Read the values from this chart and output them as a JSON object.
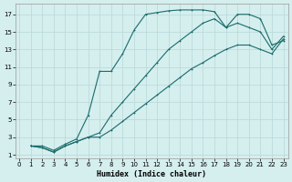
{
  "xlabel": "Humidex (Indice chaleur)",
  "background_color": "#d5eeee",
  "line_color": "#1a6b6b",
  "grid_color": "#b8d8d8",
  "xlim_min": -0.3,
  "xlim_max": 23.4,
  "ylim_min": 0.6,
  "ylim_max": 18.2,
  "xticks": [
    0,
    1,
    2,
    3,
    4,
    5,
    6,
    7,
    8,
    9,
    10,
    11,
    12,
    13,
    14,
    15,
    16,
    17,
    18,
    19,
    20,
    21,
    22,
    23
  ],
  "yticks": [
    1,
    3,
    5,
    7,
    9,
    11,
    13,
    15,
    17
  ],
  "line1_x": [
    1,
    2,
    3,
    4,
    5,
    6,
    7,
    8,
    9,
    10,
    11,
    12,
    13,
    14,
    15,
    16,
    17,
    18,
    19,
    20,
    21,
    22,
    23
  ],
  "line1_y": [
    2.0,
    2.0,
    1.5,
    2.2,
    2.8,
    5.5,
    10.5,
    10.5,
    12.5,
    15.2,
    17.0,
    17.2,
    17.4,
    17.5,
    17.5,
    17.5,
    17.3,
    15.5,
    17.0,
    17.0,
    16.5,
    13.5,
    14.0
  ],
  "line1_markers": [
    1,
    2,
    3,
    4,
    5,
    6,
    7,
    8,
    9,
    10,
    11,
    12,
    13,
    14,
    15,
    16,
    17,
    18,
    19,
    20,
    21,
    22,
    23
  ],
  "line2_x": [
    1,
    2,
    3,
    4,
    5,
    6,
    7,
    8,
    9,
    10,
    11,
    12,
    13,
    14,
    15,
    16,
    17,
    18,
    19,
    20,
    21,
    22,
    23
  ],
  "line2_y": [
    2.0,
    1.8,
    1.3,
    2.0,
    2.5,
    3.0,
    3.5,
    5.5,
    7.0,
    8.5,
    10.0,
    11.5,
    13.0,
    14.0,
    15.0,
    16.0,
    16.5,
    15.5,
    16.0,
    15.5,
    15.0,
    13.0,
    14.5
  ],
  "line3_x": [
    1,
    2,
    3,
    4,
    5,
    6,
    7,
    8,
    9,
    10,
    11,
    12,
    13,
    14,
    15,
    16,
    17,
    18,
    19,
    20,
    21,
    22,
    23
  ],
  "line3_y": [
    2.0,
    1.8,
    1.3,
    2.0,
    2.5,
    3.0,
    3.0,
    3.8,
    4.8,
    5.8,
    6.8,
    7.8,
    8.8,
    9.8,
    10.8,
    11.5,
    12.3,
    13.0,
    13.5,
    13.5,
    13.0,
    12.5,
    14.2
  ],
  "tick_fontsize": 5.0,
  "xlabel_fontsize": 6.0,
  "linewidth": 0.8,
  "markersize": 2.0
}
